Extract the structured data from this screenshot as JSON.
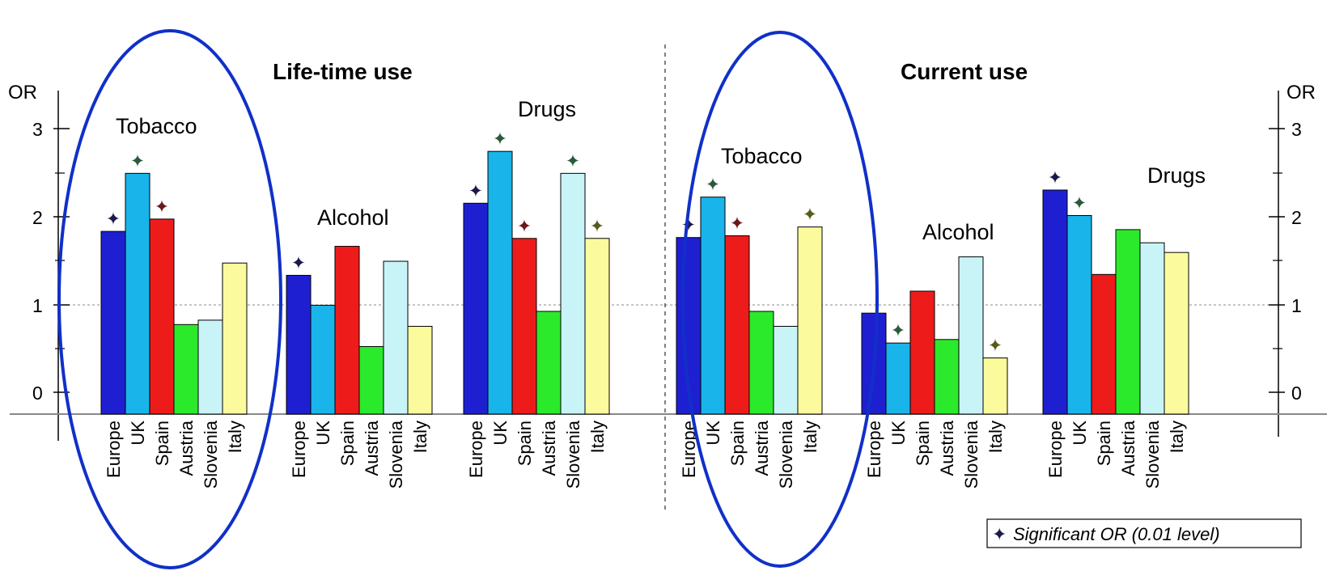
{
  "chart_data": {
    "type": "bar",
    "axis_label_left": "OR",
    "axis_label_right": "OR",
    "ylim": [
      0,
      3
    ],
    "yticks": [
      "0",
      "1",
      "2",
      "3"
    ],
    "reference_line": 1,
    "categories": [
      "Europe",
      "UK",
      "Spain",
      "Austria",
      "Slovenia",
      "Italy"
    ],
    "category_colors": [
      "#1f1fd2",
      "#19b4ea",
      "#ee1b1b",
      "#2bea2b",
      "#c8f4f8",
      "#fbfb9e"
    ],
    "sections": [
      {
        "title": "Life-time use",
        "groups": [
          {
            "name": "Tobacco",
            "values": [
              1.83,
              2.49,
              1.97,
              0.77,
              0.82,
              1.47
            ],
            "significant": [
              true,
              true,
              true,
              false,
              false,
              false
            ]
          },
          {
            "name": "Alcohol",
            "values": [
              1.33,
              0.99,
              1.66,
              0.52,
              1.49,
              0.75
            ],
            "significant": [
              true,
              false,
              false,
              false,
              false,
              false
            ]
          },
          {
            "name": "Drugs",
            "values": [
              2.15,
              2.74,
              1.75,
              0.92,
              2.49,
              1.75
            ],
            "significant": [
              true,
              true,
              true,
              false,
              true,
              true
            ]
          }
        ]
      },
      {
        "title": "Current use",
        "groups": [
          {
            "name": "Tobacco",
            "values": [
              1.76,
              2.22,
              1.78,
              0.92,
              0.75,
              1.88
            ],
            "significant": [
              true,
              true,
              true,
              false,
              false,
              true
            ]
          },
          {
            "name": "Alcohol",
            "values": [
              0.9,
              0.56,
              1.15,
              0.6,
              1.54,
              0.39
            ],
            "significant": [
              false,
              true,
              false,
              false,
              false,
              true
            ]
          },
          {
            "name": "Drugs",
            "values": [
              2.3,
              2.01,
              1.34,
              1.85,
              1.7,
              1.59
            ],
            "significant": [
              true,
              true,
              false,
              false,
              false,
              false
            ]
          }
        ]
      }
    ],
    "legend": {
      "marker": "✦",
      "text": "Significant OR (0.01 level)"
    },
    "highlight": {
      "shape": "ellipse",
      "color": "#1030c8",
      "groups": [
        "Life-time use / Tobacco",
        "Current use / Tobacco"
      ]
    }
  }
}
